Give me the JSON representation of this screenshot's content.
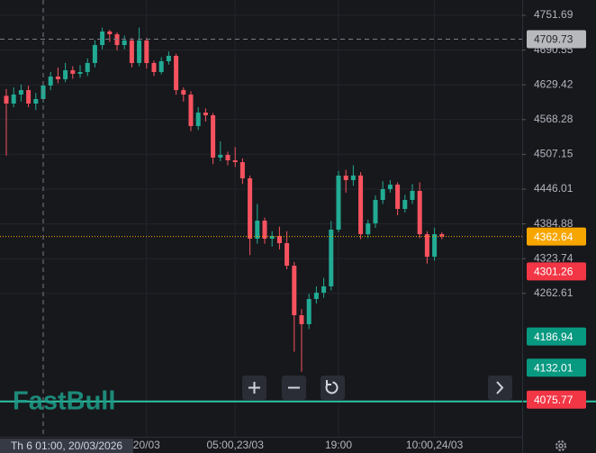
{
  "chart_data": {
    "type": "candlestick",
    "categories": [
      null,
      null,
      null,
      null,
      null,
      null,
      null,
      null,
      null,
      null,
      null,
      null,
      null,
      null,
      null,
      null,
      null,
      null,
      null,
      "20/03",
      null,
      null,
      null,
      null,
      null,
      null,
      null,
      null,
      null,
      null,
      null,
      "05:00,23/03",
      null,
      null,
      null,
      null,
      null,
      null,
      null,
      null,
      null,
      null,
      null,
      null,
      null,
      "19:00",
      null,
      null,
      null,
      null,
      null,
      null,
      null,
      null,
      null,
      null,
      null,
      null,
      "10:00,24/03",
      null
    ],
    "open": [
      4610,
      4596.5,
      4612.3,
      4620.2,
      4596.5,
      4604.4,
      4628.2,
      4644.0,
      4639.3,
      4655.1,
      4648.8,
      4651.9,
      4667.8,
      4699.4,
      4723.2,
      4718.4,
      4699.4,
      4707.4,
      4667.8,
      4707.4,
      4667.8,
      4651.9,
      4670.9,
      4680.4,
      4620.2,
      4612.3,
      4556.9,
      4580.6,
      4575.9,
      4501.5,
      4506.2,
      4496.7,
      4493.5,
      4465.0,
      4358.9,
      4390.6,
      4358.9,
      4363.7,
      4351.0,
      4311.4,
      4224.3,
      4208.5,
      4252.8,
      4263.9,
      4275.0,
      4374.8,
      4469.8,
      4461.9,
      4470.0,
      4366.8,
      4385.8,
      4427.0,
      4446.0,
      4453.9,
      4411.2,
      4427.0,
      4442.9,
      4366.8,
      4327.2,
      4366.8
    ],
    "high": [
      4622,
      4625,
      4630,
      4628,
      4615,
      4636,
      4652,
      4660,
      4668,
      4662,
      4664,
      4676,
      4708,
      4730,
      4726,
      4722,
      4716,
      4712,
      4730,
      4712,
      4672,
      4678,
      4688,
      4684,
      4625,
      4618,
      4590,
      4588,
      4580,
      4530,
      4512,
      4520,
      4500,
      4470,
      4420,
      4396,
      4372,
      4380,
      4372,
      4318,
      4235,
      4262,
      4275,
      4290,
      4390,
      4478,
      4480,
      4488,
      4476,
      4392,
      4435,
      4460,
      4462,
      4458,
      4436,
      4455,
      4458,
      4372,
      4378,
      4370
    ],
    "low": [
      4505,
      4590,
      4600,
      4590,
      4585,
      4598,
      4620,
      4632,
      4634,
      4640,
      4642,
      4645,
      4660,
      4692,
      4705,
      4690,
      4692,
      4660,
      4662,
      4658,
      4645,
      4648,
      4665,
      4612,
      4600,
      4548,
      4550,
      4565,
      4490,
      4495,
      4488,
      4485,
      4455,
      4330,
      4350,
      4350,
      4345,
      4340,
      4305,
      4160,
      4125,
      4200,
      4245,
      4255,
      4268,
      4370,
      4440,
      4452,
      4358,
      4360,
      4378,
      4420,
      4440,
      4400,
      4405,
      4420,
      4360,
      4315,
      4320,
      4358
    ],
    "close": [
      4596.5,
      4612.3,
      4620.2,
      4596.5,
      4604.4,
      4628.2,
      4644.0,
      4639.3,
      4655.1,
      4648.8,
      4651.9,
      4667.8,
      4699.4,
      4723.2,
      4718.4,
      4699.4,
      4707.4,
      4667.8,
      4707.4,
      4667.8,
      4651.9,
      4670.9,
      4680.4,
      4620.2,
      4612.3,
      4556.9,
      4580.6,
      4575.9,
      4501.5,
      4506.2,
      4496.7,
      4493.5,
      4465.0,
      4358.9,
      4390.6,
      4358.9,
      4363.7,
      4351.0,
      4311.4,
      4224.3,
      4208.5,
      4252.8,
      4263.9,
      4275.0,
      4374.8,
      4469.8,
      4461.9,
      4470.0,
      4366.8,
      4385.8,
      4427.0,
      4446.0,
      4453.9,
      4411.2,
      4427.0,
      4442.9,
      4366.8,
      4327.2,
      4366.8,
      4362.64
    ],
    "up_color": "#22ab94",
    "down_color": "#f7525f",
    "ylim": [
      4010.5,
      4778.6
    ],
    "yticks": [
      4751.69,
      4690.55,
      4629.42,
      4568.28,
      4507.15,
      4446.01,
      4384.88,
      4323.74,
      4262.61
    ],
    "grid": true,
    "crosshair": {
      "x_label": "Th 6 01:00, 20/03/2026",
      "y_value": 4709.73
    },
    "last_price_color": "#f7a600",
    "price_labels": [
      {
        "value": 4301.26,
        "color": "#f23645"
      },
      {
        "value": 4186.94,
        "color": "#089981"
      },
      {
        "value": 4132.01,
        "color": "#089981"
      },
      {
        "value": 4075.77,
        "color": "#f23645"
      }
    ]
  },
  "logo": "FastBull"
}
